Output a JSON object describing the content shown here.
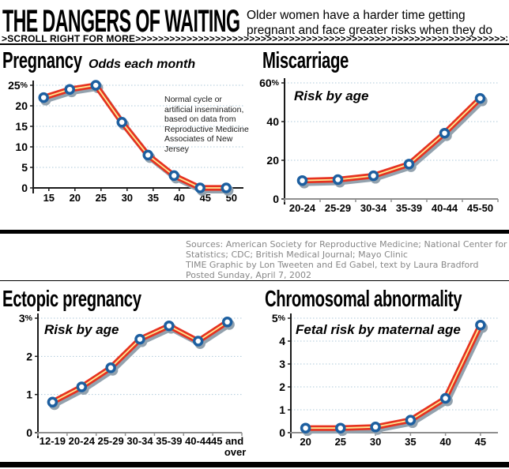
{
  "header": {
    "title": "THE DANGERS OF WAITING",
    "subtitle": "Older women have a harder time getting\npregnant and face greater risks when they do",
    "scroll_label": ">SCROLL RIGHT FOR MORE",
    "scroll_arrows": ">>>>>>>>>>>>>>>>>>>>>>>>>>>>>>>>>>>>>>>>>>>>>>>>>>>>>>>>>>>>>>>>>>>>>>>>>>>>>>>>>>>>>>>>>>"
  },
  "sources": "Sources: American Society for Reproductive Medicine; National Center for Health\nStatistics; CDC; British Medical Journal; Mayo Clinic\nTIME Graphic by Lon Tweeten and Ed Gabel, text by Laura Bradford\nPosted Sunday, April 7, 2002",
  "colors": {
    "line_red": "#e63220",
    "line_yellow": "#ffeb94",
    "shadow": "#93a2ae",
    "marker_ring": "#1d5fa0",
    "marker_fill": "#ffffff",
    "gridline": "#aec9da",
    "axis_black": "#1a1a1a",
    "axis_gray": "#8f8f8f",
    "text": "#000000"
  },
  "chart_data": [
    {
      "id": "pregnancy",
      "type": "line",
      "title": "Pregnancy",
      "subtitle": "Odds each month",
      "annotation": "Normal cycle or\nartificial insemination,\nbased on data from\nReproductive Medicine\nAssociates of New\nJersey",
      "x": [
        14,
        19,
        24,
        29,
        34,
        39,
        44,
        49
      ],
      "values": [
        22,
        24,
        25,
        16,
        8,
        3,
        0,
        0
      ],
      "xlim": [
        12,
        52.3
      ],
      "xticks": [
        15,
        20,
        25,
        30,
        35,
        40,
        45,
        50
      ],
      "xtick_labels": [
        "15",
        "20",
        "25",
        "30",
        "35",
        "40",
        "45",
        "50"
      ],
      "ylim": [
        0,
        25
      ],
      "yticks": [
        0,
        5,
        10,
        15,
        20,
        25
      ],
      "ytick_labels": [
        "0",
        "5",
        "10",
        "15",
        "20",
        "25%"
      ],
      "grid": true,
      "legend": "none"
    },
    {
      "id": "miscarriage",
      "type": "line",
      "title": "Miscarriage",
      "subtitle": "Risk by age",
      "categories": [
        "20-24",
        "25-29",
        "30-34",
        "35-39",
        "40-44",
        "45-50"
      ],
      "values": [
        9.5,
        10,
        12,
        18,
        34,
        52
      ],
      "ylim": [
        0,
        60
      ],
      "yticks": [
        0,
        20,
        40,
        60
      ],
      "ytick_labels": [
        "0",
        "20",
        "40",
        "60%"
      ],
      "grid": true,
      "legend": "none"
    },
    {
      "id": "ectopic",
      "type": "line",
      "title": "Ectopic pregnancy",
      "subtitle": "Risk by age",
      "categories": [
        "12-19",
        "20-24",
        "25-29",
        "30-34",
        "35-39",
        "40-44",
        "45 and\nover"
      ],
      "values": [
        0.8,
        1.2,
        1.7,
        2.45,
        2.8,
        2.4,
        2.9
      ],
      "ylim": [
        0,
        3
      ],
      "yticks": [
        0,
        1,
        2,
        3
      ],
      "ytick_labels": [
        "0",
        "1",
        "2",
        "3%"
      ],
      "grid": true,
      "legend": "none"
    },
    {
      "id": "chromosomal",
      "type": "line",
      "title": "Chromosomal abnormality",
      "subtitle": "Fetal risk by maternal age",
      "x": [
        20,
        25,
        30,
        35,
        40,
        45
      ],
      "values": [
        0.2,
        0.2,
        0.25,
        0.55,
        1.5,
        4.7
      ],
      "xlim": [
        17.9,
        47.5
      ],
      "xticks": [
        20,
        25,
        30,
        35,
        40,
        45
      ],
      "xtick_labels": [
        "20",
        "25",
        "30",
        "35",
        "40",
        "45"
      ],
      "ylim": [
        0,
        5
      ],
      "yticks": [
        0,
        1,
        2,
        3,
        4,
        5
      ],
      "ytick_labels": [
        "0",
        "1",
        "2",
        "3",
        "4",
        "5%"
      ],
      "grid": true,
      "legend": "none"
    }
  ]
}
